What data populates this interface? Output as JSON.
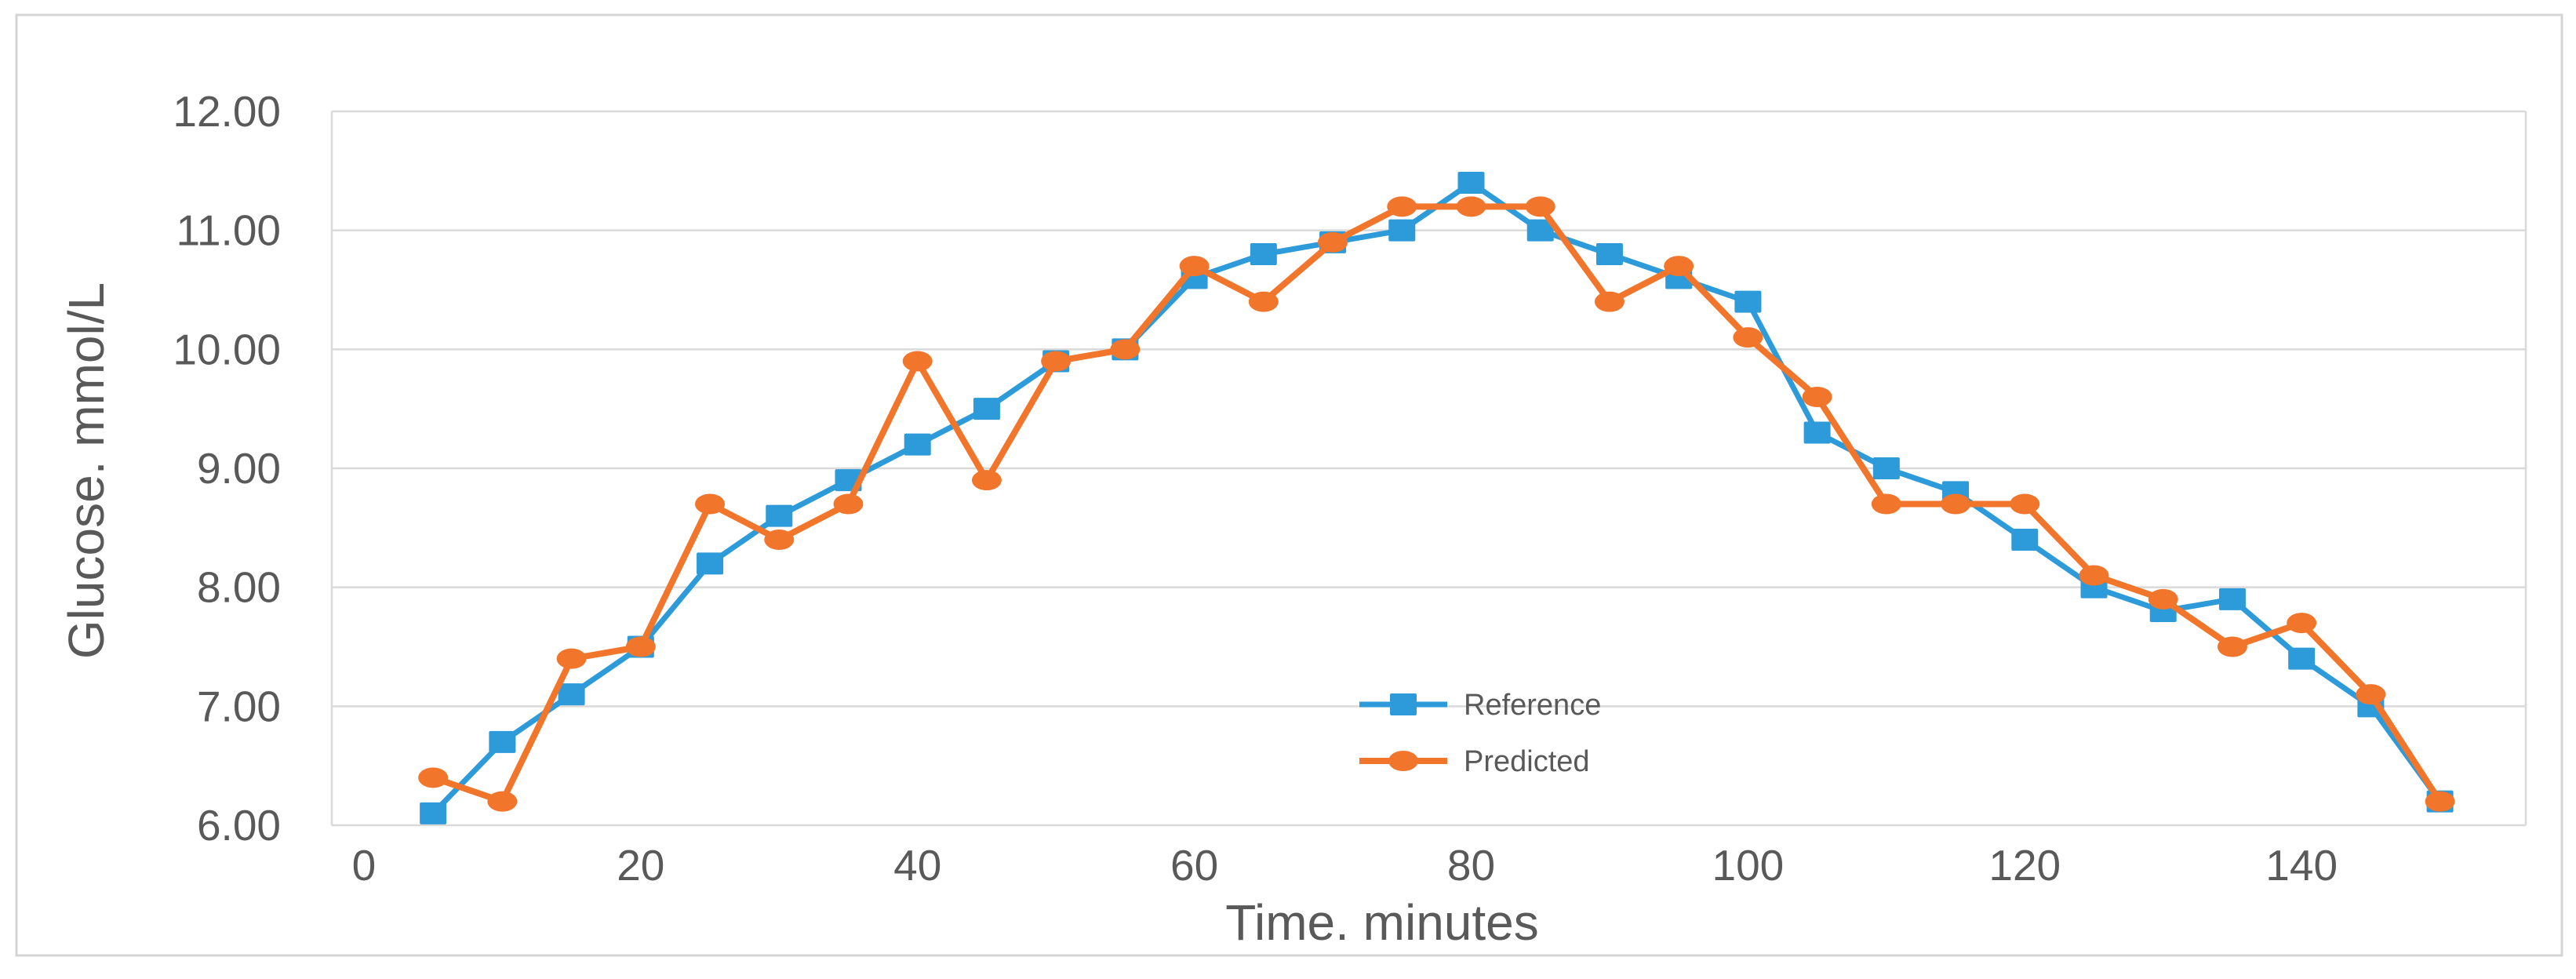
{
  "figure": {
    "background": "#ffffff",
    "border_color": "#d4d4d4"
  },
  "chart_data": {
    "type": "line",
    "title": "",
    "xlabel": "Time. minutes",
    "ylabel": "Glucose. mmol/L",
    "x": [
      5,
      10,
      15,
      20,
      25,
      30,
      35,
      40,
      45,
      50,
      55,
      60,
      65,
      70,
      75,
      80,
      85,
      90,
      95,
      100,
      105,
      110,
      115,
      120,
      125,
      130,
      135,
      140,
      145,
      150
    ],
    "series": [
      {
        "name": "Reference",
        "color": "#2d9bd9",
        "marker": "square",
        "values": [
          6.1,
          6.7,
          7.1,
          7.5,
          8.2,
          8.6,
          8.9,
          9.2,
          9.5,
          9.9,
          10.0,
          10.6,
          10.8,
          10.9,
          11.0,
          11.4,
          11.0,
          10.8,
          10.6,
          10.4,
          9.3,
          9.0,
          8.8,
          8.4,
          8.0,
          7.8,
          7.9,
          7.4,
          7.0,
          6.2
        ]
      },
      {
        "name": "Predicted",
        "color": "#f1752b",
        "marker": "circle",
        "values": [
          6.4,
          6.2,
          7.4,
          7.5,
          8.7,
          8.4,
          8.7,
          9.9,
          8.9,
          9.9,
          10.0,
          10.7,
          10.4,
          10.9,
          11.2,
          11.2,
          11.2,
          10.4,
          10.7,
          10.1,
          9.6,
          8.7,
          8.7,
          8.7,
          8.1,
          7.9,
          7.5,
          7.7,
          7.1,
          6.2
        ]
      }
    ],
    "ylim": [
      6,
      12
    ],
    "xticks": [
      0,
      20,
      40,
      60,
      80,
      100,
      120,
      140
    ],
    "yticks": [
      "6.00",
      "7.00",
      "8.00",
      "9.00",
      "10.00",
      "11.00",
      "12.00"
    ],
    "grid": "horizontal",
    "gridline_color": "#d9d9d9",
    "text_color": "#595959",
    "legend_position": "inside-right-lower"
  }
}
